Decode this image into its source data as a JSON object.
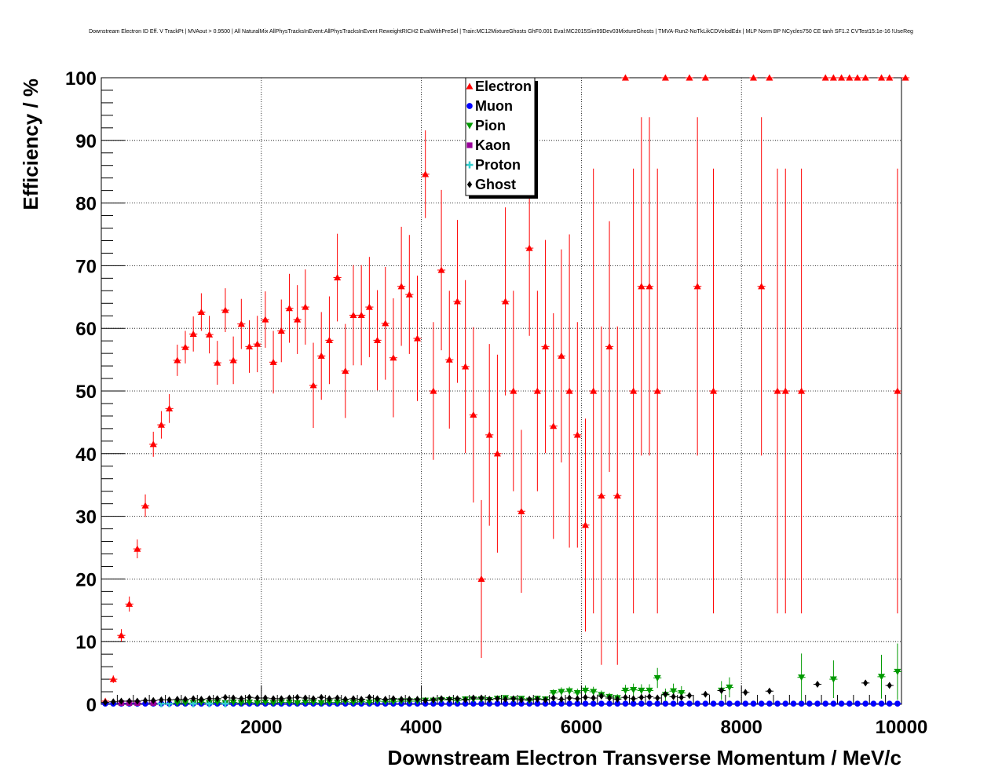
{
  "chart_data": {
    "type": "scatter",
    "title": "Downstream Electron ID Eff. V TrackPt | MVAout > 0.9500 | All NaturalMix AllPhysTracksInEvent:AllPhysTracksInEvent ReweightRICH2 EvalWithPreSel | Train:MC12MixtureGhosts GhF0.001 Eval:MC2015Sim09Dev03MixtureGhosts | TMVA-Run2-NoTkLikCDVelodEdx | MLP Norm BP NCycles750 CE tanh SF1.2 CVTest15:1e-16 !UseReg",
    "xlabel": "Downstream Electron Transverse Momentum / MeV/c",
    "ylabel": "Efficiency / %",
    "xlim": [
      0,
      10000
    ],
    "ylim": [
      0,
      100
    ],
    "xticks": [
      2000,
      4000,
      6000,
      8000,
      10000
    ],
    "xtick_labels": [
      "2000",
      "4000",
      "6000",
      "8000",
      "10000"
    ],
    "yticks": [
      0,
      10,
      20,
      30,
      40,
      50,
      60,
      70,
      80,
      90,
      100
    ],
    "ytick_labels": [
      "0",
      "10",
      "20",
      "30",
      "40",
      "50",
      "60",
      "70",
      "80",
      "90",
      "100"
    ],
    "grid": true,
    "legend_position": "top-center",
    "series": [
      {
        "name": "Electron",
        "color": "#ff0000",
        "marker": "triangle-up",
        "x": [
          50,
          150,
          250,
          350,
          450,
          550,
          650,
          750,
          850,
          950,
          1050,
          1150,
          1250,
          1350,
          1450,
          1550,
          1650,
          1750,
          1850,
          1950,
          2050,
          2150,
          2250,
          2350,
          2450,
          2550,
          2650,
          2750,
          2850,
          2950,
          3050,
          3150,
          3250,
          3350,
          3450,
          3550,
          3650,
          3750,
          3850,
          3950,
          4050,
          4150,
          4250,
          4350,
          4450,
          4550,
          4650,
          4750,
          4850,
          4950,
          5050,
          5150,
          5250,
          5350,
          5450,
          5550,
          5650,
          5750,
          5850,
          5950,
          6050,
          6150,
          6250,
          6350,
          6450,
          6550,
          6650,
          6750,
          6850,
          6950,
          7050,
          7350,
          7450,
          7550,
          7650,
          8150,
          8250,
          8350,
          8450,
          8550,
          8750,
          9050,
          9150,
          9250,
          9350,
          9450,
          9550,
          9750,
          9850,
          9950,
          10050
        ],
        "y": [
          0.5,
          4,
          11,
          16,
          24.8,
          31.7,
          41.5,
          44.6,
          47.2,
          54.9,
          57,
          59.1,
          62.6,
          59,
          54.5,
          62.9,
          54.9,
          60.7,
          57.1,
          57.5,
          61.4,
          54.6,
          59.6,
          63.2,
          61.4,
          63.4,
          50.9,
          55.6,
          58.1,
          68.1,
          53.2,
          62.1,
          62.1,
          63.4,
          58.1,
          60.8,
          55.3,
          66.7,
          65.4,
          58.4,
          84.6,
          50,
          69.3,
          55,
          64.3,
          53.9,
          46.2,
          20,
          43,
          40,
          64.3,
          50,
          30.8,
          72.8,
          50,
          57.1,
          44.4,
          55.6,
          50,
          43,
          28.6,
          50,
          33.3,
          57.1,
          33.3,
          100,
          50,
          66.7,
          66.7,
          50,
          100,
          100,
          66.7,
          100,
          50,
          100,
          66.7,
          100,
          50,
          50,
          50,
          100,
          100,
          100,
          100,
          100,
          100,
          100,
          100,
          50,
          100
        ],
        "yerr": [
          0.3,
          0.6,
          1,
          1.2,
          1.5,
          1.8,
          2,
          2.2,
          2.3,
          2.5,
          2.6,
          2.8,
          3,
          3,
          3.5,
          3.5,
          3.8,
          4,
          4.2,
          4.5,
          4.5,
          5,
          5,
          5.5,
          5.5,
          6,
          6.8,
          7,
          7,
          7,
          7.5,
          8,
          8,
          8,
          8,
          9,
          9.5,
          9.5,
          9.5,
          10,
          7,
          11,
          12.8,
          11,
          13,
          13.8,
          14,
          12.6,
          14.5,
          15.8,
          15,
          16,
          13,
          14,
          16,
          17,
          18,
          17,
          25,
          18,
          17,
          35.5,
          27,
          20,
          27,
          0,
          35.5,
          27,
          27,
          35.5,
          0,
          0,
          27,
          0,
          35.5,
          0,
          27,
          0,
          35.5,
          35.5,
          35.5,
          0,
          0,
          0,
          0,
          0,
          0,
          0,
          0,
          35.5,
          0
        ]
      },
      {
        "name": "Muon",
        "color": "#0000ff",
        "marker": "circle",
        "x": [
          50,
          150,
          250,
          350,
          450,
          550,
          650,
          750,
          850,
          950,
          1050,
          1150,
          1250,
          1350,
          1450,
          1550,
          1650,
          1750,
          1850,
          1950,
          2050,
          2150,
          2250,
          2350,
          2450,
          2550,
          2650,
          2750,
          2850,
          2950,
          3050,
          3150,
          3250,
          3350,
          3450,
          3550,
          3650,
          3750,
          3850,
          3950,
          4050,
          4150,
          4250,
          4350,
          4450,
          4550,
          4650,
          4750,
          4850,
          4950,
          5050,
          5150,
          5250,
          5350,
          5450,
          5550,
          5650,
          5750,
          5850,
          5950,
          6050,
          6150,
          6250,
          6350,
          6450,
          6550,
          6650,
          6750,
          6850,
          6950,
          7050,
          7150,
          7250,
          7350,
          7450,
          7550,
          7650,
          7750,
          7850,
          7950,
          8050,
          8150,
          8250,
          8350,
          8450,
          8550,
          8650,
          8750,
          8850,
          8950,
          9050,
          9150,
          9250,
          9350,
          9450,
          9550,
          9650,
          9750,
          9850,
          9950
        ],
        "y": [
          0.1,
          0.1,
          0.1,
          0.1,
          0.1,
          0.1,
          0.1,
          0.1,
          0.1,
          0.1,
          0.1,
          0.1,
          0.1,
          0.1,
          0.1,
          0.1,
          0.1,
          0.1,
          0.1,
          0.1,
          0.1,
          0.1,
          0.1,
          0.1,
          0.1,
          0.1,
          0.1,
          0.1,
          0.1,
          0.1,
          0.1,
          0.1,
          0.1,
          0.1,
          0.1,
          0.1,
          0.1,
          0.1,
          0.1,
          0.1,
          0.1,
          0.1,
          0.1,
          0.1,
          0.1,
          0.1,
          0.1,
          0.1,
          0.1,
          0.1,
          0.1,
          0.1,
          0.1,
          0.1,
          0.1,
          0.1,
          0.1,
          0.1,
          0.1,
          0.1,
          0.1,
          0.1,
          0.1,
          0.1,
          0.1,
          0.1,
          0.1,
          0.1,
          0.1,
          0.1,
          0.1,
          0.1,
          0.1,
          0.1,
          0.1,
          0.1,
          0.1,
          0.1,
          0.1,
          0.1,
          0.1,
          0.1,
          0.1,
          0.1,
          0.1,
          0.1,
          0.1,
          0.1,
          0.1,
          0.1,
          0.1,
          0.1,
          0.1,
          0.1,
          0.1,
          0.1,
          0.1,
          0.1,
          0.1,
          0.1
        ]
      },
      {
        "name": "Pion",
        "color": "#009900",
        "marker": "triangle-down",
        "x": [
          950,
          1050,
          1150,
          1250,
          1350,
          1450,
          1550,
          1650,
          1750,
          1850,
          1950,
          2050,
          2150,
          2250,
          2350,
          2450,
          2550,
          2650,
          2750,
          2850,
          2950,
          3050,
          3150,
          3250,
          3350,
          3450,
          3550,
          3650,
          3750,
          3850,
          3950,
          4050,
          4150,
          4250,
          4350,
          4450,
          4550,
          4650,
          4750,
          4850,
          4950,
          5050,
          5150,
          5250,
          5350,
          5450,
          5550,
          5650,
          5750,
          5850,
          5950,
          6050,
          6150,
          6250,
          6350,
          6450,
          6550,
          6650,
          6750,
          6850,
          6950,
          7050,
          7150,
          7250,
          7750,
          7850,
          8750,
          9150,
          9750,
          9950
        ],
        "y": [
          0.2,
          0.2,
          0.2,
          0.3,
          0.2,
          0.3,
          0.2,
          0.3,
          0.2,
          0.3,
          0.2,
          0.3,
          0.2,
          0.3,
          0.3,
          0.2,
          0.3,
          0.3,
          0.2,
          0.3,
          0.3,
          0.4,
          0.3,
          0.4,
          0.3,
          0.5,
          0.4,
          0.4,
          0.5,
          0.5,
          0.5,
          0.6,
          0.6,
          0.7,
          0.7,
          0.6,
          0.8,
          0.8,
          0.8,
          0.7,
          0.9,
          1,
          0.8,
          0.9,
          0.6,
          0.9,
          0.8,
          1.8,
          2,
          2.1,
          1.8,
          2.2,
          2,
          1.5,
          1.2,
          1,
          2.2,
          2.3,
          2.2,
          2.2,
          4.2,
          1.5,
          2.1,
          1.8,
          2.2,
          2.7,
          4.3,
          4,
          4.4,
          5.2
        ],
        "yerr": [
          0.1,
          0.1,
          0.1,
          0.1,
          0.1,
          0.1,
          0.1,
          0.1,
          0.1,
          0.1,
          0.1,
          0.1,
          0.1,
          0.1,
          0.1,
          0.1,
          0.1,
          0.1,
          0.1,
          0.1,
          0.1,
          0.1,
          0.1,
          0.1,
          0.1,
          0.2,
          0.2,
          0.2,
          0.2,
          0.2,
          0.2,
          0.2,
          0.2,
          0.3,
          0.3,
          0.3,
          0.3,
          0.3,
          0.3,
          0.3,
          0.4,
          0.4,
          0.4,
          0.4,
          0.3,
          0.4,
          0.4,
          0.6,
          0.7,
          0.7,
          0.7,
          0.8,
          0.8,
          0.7,
          0.6,
          0.6,
          0.9,
          1,
          1,
          1,
          1.6,
          1,
          1.2,
          1.1,
          1.5,
          1.6,
          3.8,
          3,
          3.5,
          4.5
        ]
      },
      {
        "name": "Kaon",
        "color": "#990099",
        "marker": "square",
        "x": [
          250,
          350,
          450,
          650
        ],
        "y": [
          0.2,
          0.2,
          0.2,
          0.2
        ]
      },
      {
        "name": "Proton",
        "color": "#33cccc",
        "marker": "cross",
        "x": [
          750,
          850,
          1150,
          1350,
          1550
        ],
        "y": [
          0.1,
          0.1,
          0.1,
          0.1,
          0.1
        ]
      },
      {
        "name": "Ghost",
        "color": "#000000",
        "marker": "diamond",
        "x": [
          50,
          150,
          250,
          350,
          450,
          550,
          650,
          750,
          850,
          950,
          1050,
          1150,
          1250,
          1350,
          1450,
          1550,
          1650,
          1750,
          1850,
          1950,
          2050,
          2150,
          2250,
          2350,
          2450,
          2550,
          2650,
          2750,
          2850,
          2950,
          3050,
          3150,
          3250,
          3350,
          3450,
          3550,
          3650,
          3750,
          3850,
          3950,
          4050,
          4150,
          4250,
          4350,
          4450,
          4550,
          4650,
          4750,
          4850,
          4950,
          5050,
          5150,
          5250,
          5350,
          5450,
          5550,
          5650,
          5750,
          5850,
          5950,
          6050,
          6150,
          6250,
          6350,
          6450,
          6550,
          6650,
          6750,
          6850,
          6950,
          7050,
          7150,
          7250,
          7350,
          7550,
          7750,
          8050,
          8350,
          8950,
          9550,
          9850
        ],
        "y": [
          0.3,
          0.4,
          0.5,
          0.5,
          0.5,
          0.6,
          0.6,
          0.7,
          0.7,
          0.8,
          0.8,
          0.9,
          0.8,
          0.9,
          0.9,
          1.1,
          1,
          0.9,
          1.1,
          1,
          1,
          0.9,
          0.9,
          1,
          1.1,
          1,
          0.9,
          1.1,
          0.9,
          1,
          0.8,
          0.9,
          0.8,
          1.1,
          0.9,
          0.8,
          0.9,
          0.8,
          0.8,
          0.8,
          0.6,
          0.7,
          0.9,
          0.8,
          0.9,
          0.7,
          1,
          1,
          0.8,
          0.9,
          0.8,
          0.9,
          0.7,
          0.8,
          0.8,
          0.7,
          1,
          0.8,
          1,
          0.9,
          1.1,
          1,
          1.3,
          1,
          0.8,
          1.1,
          0.9,
          1.1,
          1.2,
          1,
          1.6,
          1.2,
          1.1,
          1.4,
          1.6,
          2.2,
          1.9,
          2.1,
          3.2,
          3.4,
          3
        ]
      }
    ]
  }
}
